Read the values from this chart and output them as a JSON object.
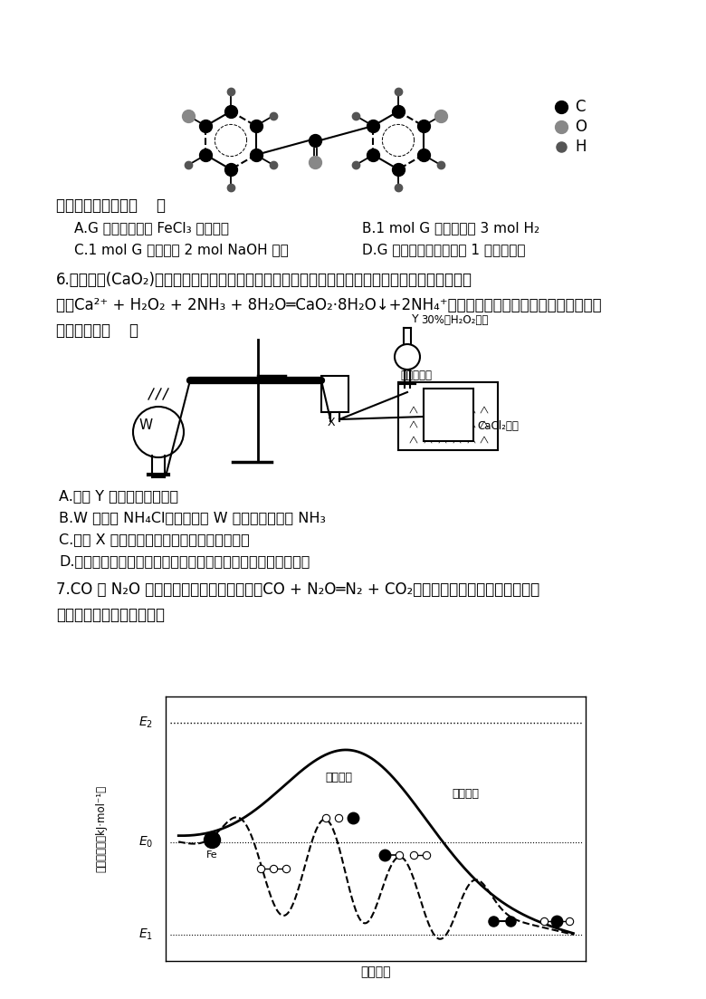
{
  "bg_color": "#ffffff",
  "q5_question": "下列说法错误的是（    ）",
  "q5_A": "A.G 易被氧化且遇 FeCl₃ 溶液显色",
  "q5_B": "B.1 mol G 最多能消耗 3 mol H₂",
  "q5_C": "C.1 mol G 最多能与 2 mol NaOH 反应",
  "q5_D": "D.G 分子中碳原子只采用 1 种杂化方式",
  "q6_text1": "6.过氧化钙(CaO₂)是一种白色的固体，微溶于水，且不溶于乙醇、乙醚和碱性溶液，溶于酸。利用",
  "q6_text2": "反应Ca²⁺ + H₂O₂ + 2NH₃ + 8H₂O═CaO₂·8H₂O↓+2NH₄⁺制备过氧化钙的装置如图所示。下列说",
  "q6_text3": "法正确的是（    ）",
  "q6_A": "A.仪器 Y 的名称为长颈漏斗",
  "q6_B": "B.W 可以是 NH₄Cl，通过加热 W 提供反应所需的 NH₃",
  "q6_C": "C.仪器 X 的作用是导气，并防止发生倒吸现象",
  "q6_D": "D.为加快反应速率和提高产率，可将冰水混合物改为温水浴加热",
  "q7_text1": "7.CO 与 N₂O 均是大气污染物，可通过反应CO + N₂O═N₂ + CO₂转化为无害气体，其相对能量与",
  "q7_text2": "反应历程的关系如图所示。",
  "ylabel": "相对能量／（kJ·mol⁻¹）",
  "xlabel": "反应历程",
  "label_no_catalyst": "无催化剂",
  "label_fe_catalyst": "铁催化剂",
  "fe_label": "Fe",
  "legend_C": "C",
  "legend_O": "O",
  "legend_H": "H"
}
